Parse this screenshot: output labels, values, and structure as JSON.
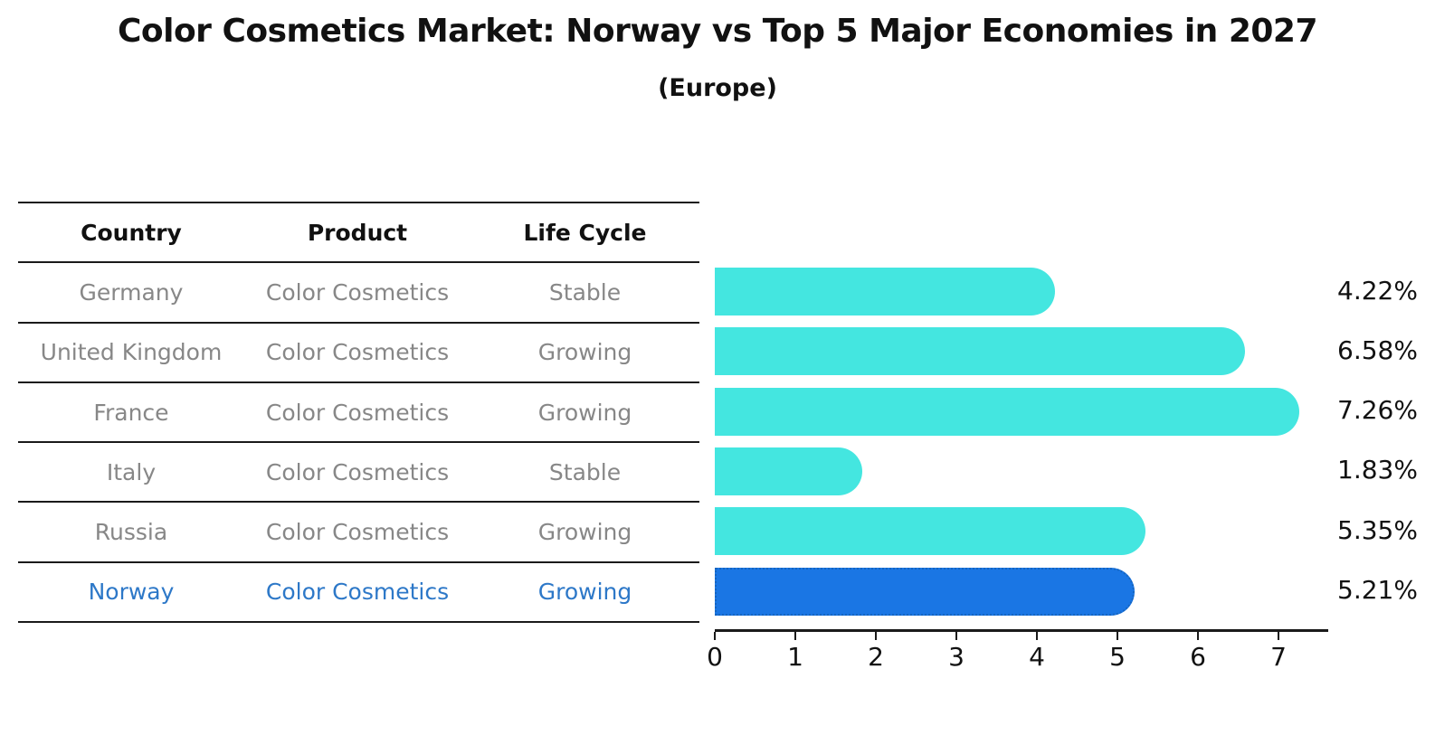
{
  "title": "Color Cosmetics Market: Norway vs Top 5 Major Economies in 2027",
  "subtitle": "(Europe)",
  "table": {
    "headers": [
      "Country",
      "Product",
      "Life Cycle"
    ],
    "rows": [
      {
        "country": "Germany",
        "product": "Color Cosmetics",
        "life_cycle": "Stable",
        "highlighted": false
      },
      {
        "country": "United Kingdom",
        "product": "Color Cosmetics",
        "life_cycle": "Growing",
        "highlighted": false
      },
      {
        "country": "France",
        "product": "Color Cosmetics",
        "life_cycle": "Growing",
        "highlighted": false
      },
      {
        "country": "Italy",
        "product": "Color Cosmetics",
        "life_cycle": "Stable",
        "highlighted": false
      },
      {
        "country": "Russia",
        "product": "Color Cosmetics",
        "life_cycle": "Growing",
        "highlighted": false
      },
      {
        "country": "Norway",
        "product": "Color Cosmetics",
        "life_cycle": "Growing",
        "highlighted": true
      }
    ]
  },
  "chart_data": {
    "type": "bar",
    "orientation": "horizontal",
    "title": "Color Cosmetics Market: Norway vs Top 5 Major Economies in 2027",
    "subtitle": "(Europe)",
    "categories": [
      "Germany",
      "United Kingdom",
      "France",
      "Italy",
      "Russia",
      "Norway"
    ],
    "values": [
      4.22,
      6.58,
      7.26,
      1.83,
      5.35,
      5.21
    ],
    "value_labels": [
      "4.22%",
      "6.58%",
      "7.26%",
      "1.83%",
      "5.35%",
      "5.21%"
    ],
    "xlabel": "",
    "ylabel": "",
    "x_ticks": [
      0,
      1,
      2,
      3,
      4,
      5,
      6,
      7
    ],
    "xlim": [
      0,
      7.62
    ],
    "grid": false,
    "legend": "none",
    "highlight_index": 5,
    "bar_color": "#44E6E0",
    "highlight_bar_color": "#1A76E4",
    "highlight_border_color": "#1565C0",
    "highlight_text_color": "#2D78C8",
    "row_text_color": "#878787"
  }
}
